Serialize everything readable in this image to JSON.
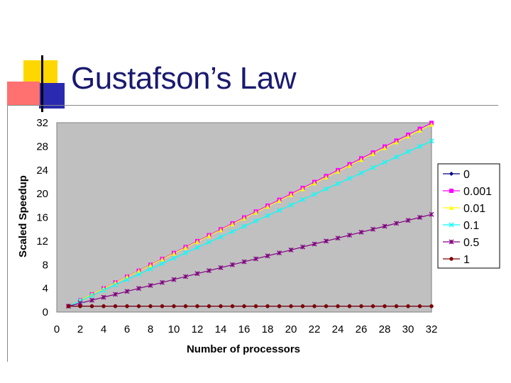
{
  "slide": {
    "title": "Gustafson’s Law"
  },
  "chart_data": {
    "type": "line",
    "title": "",
    "xlabel": "Number of processors",
    "ylabel": "Scaled Speedup",
    "xlim": [
      0,
      32
    ],
    "ylim": [
      0,
      32
    ],
    "x_ticks": [
      0,
      2,
      4,
      6,
      8,
      10,
      12,
      14,
      16,
      18,
      20,
      22,
      24,
      26,
      28,
      30,
      32
    ],
    "y_ticks": [
      0,
      4,
      8,
      12,
      16,
      20,
      24,
      28,
      32
    ],
    "x": [
      1,
      2,
      3,
      4,
      5,
      6,
      7,
      8,
      9,
      10,
      11,
      12,
      13,
      14,
      15,
      16,
      17,
      18,
      19,
      20,
      21,
      22,
      23,
      24,
      25,
      26,
      27,
      28,
      29,
      30,
      31,
      32
    ],
    "grid": false,
    "legend_position": "right",
    "plot_background": "#c0c0c0",
    "series": [
      {
        "name": "0",
        "color": "#000080",
        "marker": "diamond",
        "values": [
          1,
          1,
          1,
          1,
          1,
          1,
          1,
          1,
          1,
          1,
          1,
          1,
          1,
          1,
          1,
          1,
          1,
          1,
          1,
          1,
          1,
          1,
          1,
          1,
          1,
          1,
          1,
          1,
          1,
          1,
          1,
          1
        ]
      },
      {
        "name": "0.001",
        "color": "#ff00ff",
        "marker": "square",
        "values": [
          1.0,
          2.0,
          3.0,
          4.0,
          5.0,
          5.99,
          6.99,
          7.99,
          8.99,
          9.99,
          10.99,
          11.99,
          12.99,
          13.99,
          14.99,
          15.99,
          16.98,
          17.98,
          18.98,
          19.98,
          20.98,
          21.98,
          22.98,
          23.98,
          24.98,
          25.97,
          26.97,
          27.97,
          28.97,
          29.97,
          30.97,
          31.97
        ]
      },
      {
        "name": "0.01",
        "color": "#ffff00",
        "marker": "triangle",
        "values": [
          1.0,
          1.99,
          2.98,
          3.97,
          4.96,
          5.95,
          6.94,
          7.93,
          8.92,
          9.91,
          10.9,
          11.89,
          12.88,
          13.87,
          14.86,
          15.85,
          16.84,
          17.83,
          18.82,
          19.81,
          20.8,
          21.79,
          22.78,
          23.77,
          24.76,
          25.75,
          26.74,
          27.73,
          28.72,
          29.71,
          30.7,
          31.69
        ]
      },
      {
        "name": "0.1",
        "color": "#00ffff",
        "marker": "x",
        "values": [
          1.0,
          1.9,
          2.8,
          3.7,
          4.6,
          5.5,
          6.4,
          7.3,
          8.2,
          9.1,
          10.0,
          10.9,
          11.8,
          12.7,
          13.6,
          14.5,
          15.4,
          16.3,
          17.2,
          18.1,
          19.0,
          19.9,
          20.8,
          21.7,
          22.6,
          23.5,
          24.4,
          25.3,
          26.2,
          27.1,
          28.0,
          28.9
        ]
      },
      {
        "name": "0.5",
        "color": "#800080",
        "marker": "star",
        "values": [
          1.0,
          1.5,
          2.0,
          2.5,
          3.0,
          3.5,
          4.0,
          4.5,
          5.0,
          5.5,
          6.0,
          6.5,
          7.0,
          7.5,
          8.0,
          8.5,
          9.0,
          9.5,
          10.0,
          10.5,
          11.0,
          11.5,
          12.0,
          12.5,
          13.0,
          13.5,
          14.0,
          14.5,
          15.0,
          15.5,
          16.0,
          16.5
        ]
      },
      {
        "name": "1",
        "color": "#800000",
        "marker": "circle",
        "values": [
          1,
          1,
          1,
          1,
          1,
          1,
          1,
          1,
          1,
          1,
          1,
          1,
          1,
          1,
          1,
          1,
          1,
          1,
          1,
          1,
          1,
          1,
          1,
          1,
          1,
          1,
          1,
          1,
          1,
          1,
          1,
          1
        ]
      }
    ]
  }
}
